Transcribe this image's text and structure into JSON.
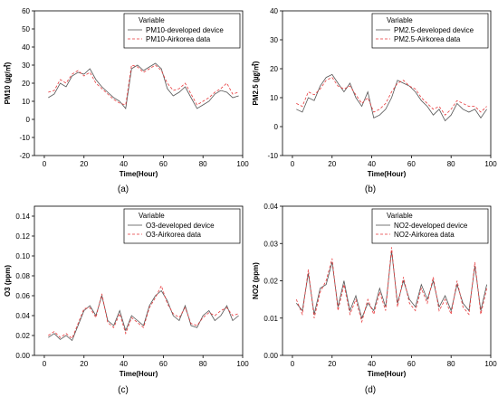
{
  "chart_data": [
    {
      "type": "line",
      "panel_label": "(a)",
      "xlabel": "Time(Hour)",
      "ylabel": "PM10 (㎍/㎥)",
      "xlim": [
        -5,
        100
      ],
      "ylim": [
        -20,
        60
      ],
      "xticks": [
        0,
        20,
        40,
        60,
        80,
        100
      ],
      "xtick_labels": [
        "0",
        "20",
        "40",
        "60",
        "80",
        "100"
      ],
      "yticks": [
        -20,
        -10,
        0,
        10,
        20,
        30,
        40,
        50,
        60
      ],
      "ytick_labels": [
        "-20",
        "-10",
        "0",
        "10",
        "20",
        "30",
        "40",
        "50",
        "60"
      ],
      "legend_title": "Variable",
      "legend_position": "top-right",
      "grid": false,
      "series": [
        {
          "name": "PM10-developed device",
          "color": "#555555",
          "dash": "solid",
          "x": [
            2,
            5,
            8,
            11,
            14,
            17,
            20,
            23,
            26,
            29,
            32,
            35,
            38,
            41,
            44,
            47,
            50,
            53,
            56,
            59,
            62,
            65,
            68,
            71,
            74,
            77,
            80,
            83,
            86,
            89,
            92,
            95,
            98
          ],
          "y": [
            12,
            14,
            20,
            18,
            24,
            26,
            25,
            28,
            22,
            18,
            15,
            12,
            10,
            6,
            28,
            30,
            27,
            29,
            31,
            28,
            17,
            13,
            15,
            18,
            12,
            6,
            8,
            10,
            14,
            16,
            15,
            12,
            13
          ]
        },
        {
          "name": "PM10-Airkorea data",
          "color": "#e8393b",
          "dash": "dashed",
          "x": [
            2,
            5,
            8,
            11,
            14,
            17,
            20,
            23,
            26,
            29,
            32,
            35,
            38,
            41,
            44,
            47,
            50,
            53,
            56,
            59,
            62,
            65,
            68,
            71,
            74,
            77,
            80,
            83,
            86,
            89,
            92,
            95,
            98
          ],
          "y": [
            15,
            16,
            22,
            20,
            25,
            27,
            24,
            26,
            20,
            17,
            14,
            11,
            9,
            8,
            30,
            29,
            26,
            28,
            30,
            27,
            20,
            16,
            17,
            20,
            14,
            8,
            10,
            12,
            15,
            17,
            20,
            14,
            15
          ]
        }
      ]
    },
    {
      "type": "line",
      "panel_label": "(b)",
      "xlabel": "Time(Hour)",
      "ylabel": "PM2.5 (㎍/㎥)",
      "xlim": [
        -5,
        100
      ],
      "ylim": [
        -10,
        40
      ],
      "xticks": [
        0,
        20,
        40,
        60,
        80,
        100
      ],
      "xtick_labels": [
        "0",
        "20",
        "40",
        "60",
        "80",
        "100"
      ],
      "yticks": [
        -10,
        0,
        10,
        20,
        30,
        40
      ],
      "ytick_labels": [
        "-10",
        "0",
        "10",
        "20",
        "30",
        "40"
      ],
      "legend_title": "Variable",
      "legend_position": "top-right",
      "grid": false,
      "series": [
        {
          "name": "PM2.5-developed device",
          "color": "#555555",
          "dash": "solid",
          "x": [
            2,
            5,
            8,
            11,
            14,
            17,
            20,
            23,
            26,
            29,
            32,
            35,
            38,
            41,
            44,
            47,
            50,
            53,
            56,
            59,
            62,
            65,
            68,
            71,
            74,
            77,
            80,
            83,
            86,
            89,
            92,
            95,
            98
          ],
          "y": [
            6,
            5,
            10,
            9,
            14,
            17,
            18,
            15,
            12,
            15,
            10,
            7,
            12,
            3,
            4,
            6,
            10,
            16,
            15,
            14,
            12,
            9,
            7,
            4,
            6,
            2,
            4,
            8,
            6,
            5,
            6,
            3,
            6
          ]
        },
        {
          "name": "PM2.5-Airkorea data",
          "color": "#e8393b",
          "dash": "dashed",
          "x": [
            2,
            5,
            8,
            11,
            14,
            17,
            20,
            23,
            26,
            29,
            32,
            35,
            38,
            41,
            44,
            47,
            50,
            53,
            56,
            59,
            62,
            65,
            68,
            71,
            74,
            77,
            80,
            83,
            86,
            89,
            92,
            95,
            98
          ],
          "y": [
            8,
            7,
            12,
            11,
            13,
            16,
            17,
            14,
            13,
            14,
            11,
            8,
            10,
            5,
            6,
            8,
            12,
            15,
            16,
            14,
            13,
            10,
            8,
            6,
            7,
            4,
            6,
            9,
            8,
            7,
            7,
            5,
            7
          ]
        }
      ]
    },
    {
      "type": "line",
      "panel_label": "(c)",
      "xlabel": "Time(Hour)",
      "ylabel": "O3 (ppm)",
      "xlim": [
        -5,
        100
      ],
      "ylim": [
        0.0,
        0.15
      ],
      "xticks": [
        0,
        20,
        40,
        60,
        80,
        100
      ],
      "xtick_labels": [
        "0",
        "20",
        "40",
        "60",
        "80",
        "100"
      ],
      "yticks": [
        0.0,
        0.02,
        0.04,
        0.06,
        0.08,
        0.1,
        0.12,
        0.14
      ],
      "ytick_labels": [
        "0.00",
        "0.02",
        "0.04",
        "0.06",
        "0.08",
        "0.10",
        "0.12",
        "0.14"
      ],
      "legend_title": "Variable",
      "legend_position": "top-right",
      "grid": false,
      "series": [
        {
          "name": "O3-developed device",
          "color": "#555555",
          "dash": "solid",
          "x": [
            2,
            5,
            8,
            11,
            14,
            17,
            20,
            23,
            26,
            29,
            32,
            35,
            38,
            41,
            44,
            47,
            50,
            53,
            56,
            59,
            62,
            65,
            68,
            71,
            74,
            77,
            80,
            83,
            86,
            89,
            92,
            95,
            98
          ],
          "y": [
            0.018,
            0.022,
            0.016,
            0.02,
            0.015,
            0.03,
            0.045,
            0.05,
            0.04,
            0.06,
            0.035,
            0.03,
            0.045,
            0.025,
            0.04,
            0.035,
            0.03,
            0.05,
            0.06,
            0.065,
            0.055,
            0.04,
            0.035,
            0.05,
            0.03,
            0.028,
            0.04,
            0.045,
            0.035,
            0.04,
            0.05,
            0.035,
            0.04
          ]
        },
        {
          "name": "O3-Airkorea data",
          "color": "#e8393b",
          "dash": "dashed",
          "x": [
            2,
            5,
            8,
            11,
            14,
            17,
            20,
            23,
            26,
            29,
            32,
            35,
            38,
            41,
            44,
            47,
            50,
            53,
            56,
            59,
            62,
            65,
            68,
            71,
            74,
            77,
            80,
            83,
            86,
            89,
            92,
            95,
            98
          ],
          "y": [
            0.02,
            0.024,
            0.018,
            0.022,
            0.017,
            0.032,
            0.047,
            0.048,
            0.038,
            0.062,
            0.033,
            0.028,
            0.042,
            0.022,
            0.038,
            0.033,
            0.028,
            0.048,
            0.058,
            0.07,
            0.052,
            0.042,
            0.038,
            0.048,
            0.032,
            0.03,
            0.038,
            0.043,
            0.04,
            0.045,
            0.048,
            0.04,
            0.042
          ]
        }
      ]
    },
    {
      "type": "line",
      "panel_label": "(d)",
      "xlabel": "Time(Hour)",
      "ylabel": "NO2 (ppm)",
      "xlim": [
        -5,
        100
      ],
      "ylim": [
        0.0,
        0.04
      ],
      "xticks": [
        0,
        20,
        40,
        60,
        80,
        100
      ],
      "xtick_labels": [
        "0",
        "20",
        "40",
        "60",
        "80",
        "100"
      ],
      "yticks": [
        0.0,
        0.01,
        0.02,
        0.03,
        0.04
      ],
      "ytick_labels": [
        "0.00",
        "0.01",
        "0.02",
        "0.03",
        "0.04"
      ],
      "legend_title": "Variable",
      "legend_position": "top-right",
      "grid": false,
      "series": [
        {
          "name": "NO2-developed device",
          "color": "#555555",
          "dash": "solid",
          "x": [
            2,
            5,
            8,
            11,
            14,
            17,
            20,
            23,
            26,
            29,
            32,
            35,
            38,
            41,
            44,
            47,
            50,
            53,
            56,
            59,
            62,
            65,
            68,
            71,
            74,
            77,
            80,
            83,
            86,
            89,
            92,
            95,
            98
          ],
          "y": [
            0.014,
            0.012,
            0.022,
            0.011,
            0.018,
            0.019,
            0.025,
            0.013,
            0.02,
            0.012,
            0.016,
            0.01,
            0.014,
            0.012,
            0.018,
            0.013,
            0.028,
            0.014,
            0.02,
            0.015,
            0.013,
            0.019,
            0.015,
            0.02,
            0.013,
            0.016,
            0.012,
            0.019,
            0.014,
            0.012,
            0.024,
            0.012,
            0.019
          ]
        },
        {
          "name": "NO2-Airkorea data",
          "color": "#e8393b",
          "dash": "dashed",
          "x": [
            2,
            5,
            8,
            11,
            14,
            17,
            20,
            23,
            26,
            29,
            32,
            35,
            38,
            41,
            44,
            47,
            50,
            53,
            56,
            59,
            62,
            65,
            68,
            71,
            74,
            77,
            80,
            83,
            86,
            89,
            92,
            95,
            98
          ],
          "y": [
            0.015,
            0.011,
            0.023,
            0.01,
            0.017,
            0.02,
            0.026,
            0.012,
            0.019,
            0.011,
            0.015,
            0.009,
            0.015,
            0.011,
            0.017,
            0.012,
            0.029,
            0.013,
            0.021,
            0.014,
            0.012,
            0.018,
            0.014,
            0.021,
            0.012,
            0.015,
            0.011,
            0.02,
            0.013,
            0.011,
            0.025,
            0.011,
            0.018
          ]
        }
      ]
    }
  ]
}
